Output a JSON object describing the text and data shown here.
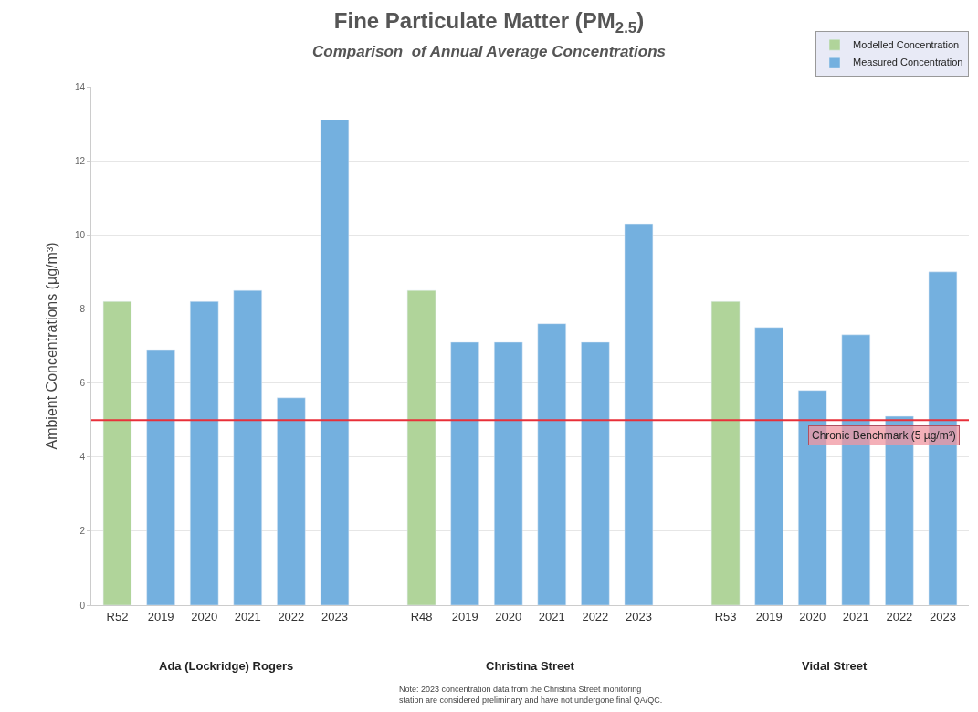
{
  "chart_data": {
    "type": "bar",
    "title": "Fine Particulate Matter (PM$_{2.5}$)",
    "subtitle": "Comparison  of Annual Average Concentrations",
    "ylabel": "Ambient Concentrations (µg/m³)",
    "categories": [
      "R52",
      "2019",
      "2020",
      "2021",
      "2022",
      "2023",
      null,
      "R48",
      "2019",
      "2020",
      "2021",
      "2022",
      "2023",
      null,
      "R53",
      "2019",
      "2020",
      "2021",
      "2022",
      "2023"
    ],
    "series": [
      {
        "name": "Modelled Concentration",
        "color": "#b0d49a",
        "values": [
          8.2,
          null,
          null,
          null,
          null,
          null,
          null,
          8.5,
          null,
          null,
          null,
          null,
          null,
          null,
          8.2,
          null,
          null,
          null,
          null,
          null
        ]
      },
      {
        "name": "Measured Concentration",
        "color": "#74b0df",
        "values": [
          null,
          6.9,
          8.2,
          8.5,
          5.6,
          13.1,
          null,
          null,
          7.1,
          7.1,
          7.6,
          7.1,
          10.3,
          null,
          null,
          7.5,
          5.8,
          7.3,
          5.1,
          9.0
        ]
      }
    ],
    "ylim": [
      0,
      14
    ],
    "yticks": [
      0,
      2,
      4,
      6,
      8,
      10,
      12,
      14
    ],
    "grid": "y",
    "legend": "top right",
    "ref_lines": [
      {
        "axis": "y",
        "value": 5,
        "label": "Chronic Benchmark (5 µg/m³)",
        "color": "#e8303a"
      }
    ],
    "annotations": [
      "Ada (Lockridge) Rogers",
      "Christina Street",
      "Vidal Street",
      "Note: 2023 concentration data from the Christina Street monitoring station are considered preliminary and have not undergone final QA/QC."
    ]
  }
}
